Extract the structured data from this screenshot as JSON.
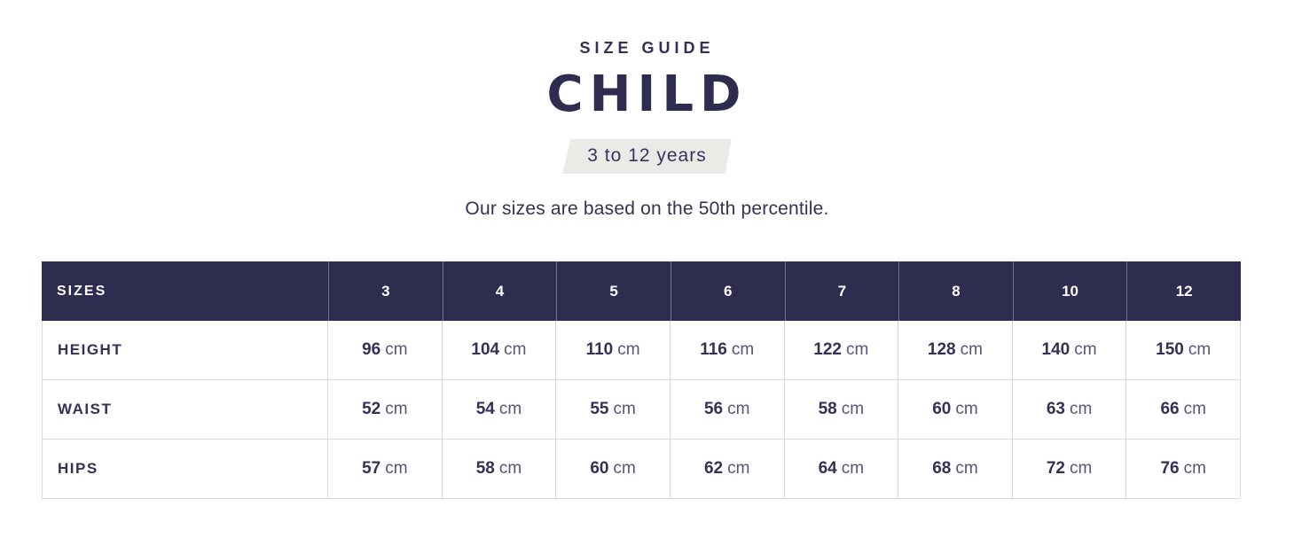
{
  "page": {
    "eyebrow": "SIZE GUIDE",
    "title": "CHILD",
    "ribbon": "3 to 12 years",
    "subtitle": "Our sizes are based on the 50th percentile."
  },
  "colors": {
    "navy_header_bg": "#2e2c4f",
    "text_navy": "#333155",
    "unit_text": "#56547b",
    "ribbon_bg": "#eaeae7",
    "table_border": "#d9d9de",
    "page_bg": "#ffffff"
  },
  "table": {
    "header_label": "SIZES",
    "sizes": [
      "3",
      "4",
      "5",
      "6",
      "7",
      "8",
      "10",
      "12"
    ],
    "unit": "cm",
    "rows": [
      {
        "label": "HEIGHT",
        "values": [
          "96",
          "104",
          "110",
          "116",
          "122",
          "128",
          "140",
          "150"
        ]
      },
      {
        "label": "WAIST",
        "values": [
          "52",
          "54",
          "55",
          "56",
          "58",
          "60",
          "63",
          "66"
        ]
      },
      {
        "label": "HIPS",
        "values": [
          "57",
          "58",
          "60",
          "62",
          "64",
          "68",
          "72",
          "76"
        ]
      }
    ]
  }
}
